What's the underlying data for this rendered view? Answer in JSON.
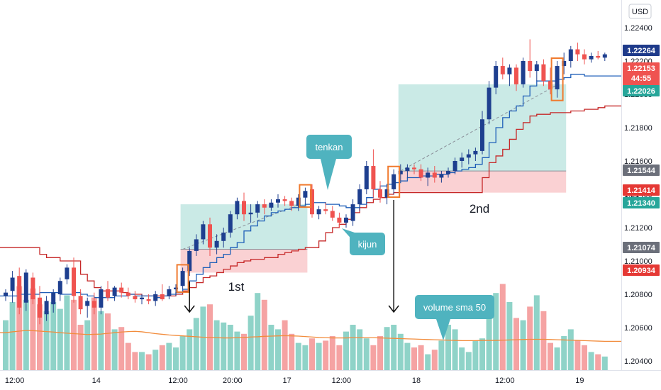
{
  "chart_data": {
    "type": "candlestick",
    "currency": "USD",
    "y_ticks": [
      "1.22400",
      "1.22200",
      "1.22000",
      "1.21800",
      "1.21600",
      "1.21400",
      "1.21200",
      "1.21000",
      "1.20800",
      "1.20600",
      "1.20400"
    ],
    "x_ticks": [
      "12:00",
      "14",
      "12:00",
      "20:00",
      "17",
      "12:00",
      "18",
      "12:00",
      "19"
    ],
    "price_labels": [
      {
        "text": "1.22264",
        "color": "#1e3a8a"
      },
      {
        "text": "1.22153",
        "color": "#ef5350"
      },
      {
        "text": "44:55",
        "color": "#ef5350"
      },
      {
        "text": "1.22026",
        "color": "#26a69a"
      },
      {
        "text": "1.21544",
        "color": "#6b6f7a"
      },
      {
        "text": "1.21414",
        "color": "#e53935"
      },
      {
        "text": "1.21340",
        "color": "#26a69a"
      },
      {
        "text": "1.21074",
        "color": "#6b6f7a"
      },
      {
        "text": "1.20934",
        "color": "#e53935"
      }
    ],
    "candles": [
      [
        1.2079,
        1.2083,
        1.2076,
        1.2081
      ],
      [
        1.2082,
        1.2094,
        1.2075,
        1.209
      ],
      [
        1.2091,
        1.2096,
        1.2068,
        1.2072
      ],
      [
        1.2075,
        1.2095,
        1.207,
        1.2093
      ],
      [
        1.209,
        1.2093,
        1.2074,
        1.2077
      ],
      [
        1.2078,
        1.2085,
        1.2062,
        1.2066
      ],
      [
        1.2068,
        1.2079,
        1.2064,
        1.2076
      ],
      [
        1.2074,
        1.2083,
        1.2069,
        1.2081
      ],
      [
        1.208,
        1.209,
        1.2076,
        1.2088
      ],
      [
        1.2089,
        1.2098,
        1.2086,
        1.2096
      ],
      [
        1.2096,
        1.2102,
        1.2075,
        1.2079
      ],
      [
        1.2079,
        1.2083,
        1.2068,
        1.2071
      ],
      [
        1.2073,
        1.2078,
        1.2066,
        1.2076
      ],
      [
        1.2076,
        1.2081,
        1.2068,
        1.2072
      ],
      [
        1.2072,
        1.2085,
        1.2068,
        1.2083
      ],
      [
        1.2083,
        1.2088,
        1.2076,
        1.2078
      ],
      [
        1.2079,
        1.2085,
        1.2076,
        1.2084
      ],
      [
        1.2084,
        1.2087,
        1.2078,
        1.2081
      ],
      [
        1.2081,
        1.2084,
        1.2077,
        1.2079
      ],
      [
        1.2079,
        1.2082,
        1.2075,
        1.2077
      ],
      [
        1.2077,
        1.208,
        1.2074,
        1.2078
      ],
      [
        1.2077,
        1.208,
        1.2074,
        1.2076
      ],
      [
        1.2076,
        1.2082,
        1.2073,
        1.208
      ],
      [
        1.208,
        1.2086,
        1.2076,
        1.2077
      ],
      [
        1.2079,
        1.2085,
        1.2077,
        1.2083
      ],
      [
        1.2083,
        1.2086,
        1.2079,
        1.2084
      ],
      [
        1.2085,
        1.2096,
        1.2083,
        1.2094
      ],
      [
        1.2094,
        1.2108,
        1.2091,
        1.2106
      ],
      [
        1.2106,
        1.2116,
        1.2103,
        1.2113
      ],
      [
        1.2113,
        1.2124,
        1.211,
        1.2122
      ],
      [
        1.2122,
        1.2126,
        1.2103,
        1.2108
      ],
      [
        1.2108,
        1.2116,
        1.2104,
        1.2112
      ],
      [
        1.2112,
        1.212,
        1.2108,
        1.2117
      ],
      [
        1.2117,
        1.213,
        1.2114,
        1.2128
      ],
      [
        1.2128,
        1.2138,
        1.2125,
        1.2136
      ],
      [
        1.2136,
        1.2141,
        1.2124,
        1.2128
      ],
      [
        1.2128,
        1.2134,
        1.2123,
        1.2129
      ],
      [
        1.2129,
        1.2136,
        1.2126,
        1.2134
      ],
      [
        1.2134,
        1.2137,
        1.2128,
        1.2132
      ],
      [
        1.2132,
        1.2137,
        1.213,
        1.2135
      ],
      [
        1.2135,
        1.214,
        1.2132,
        1.2137
      ],
      [
        1.2137,
        1.2139,
        1.2133,
        1.2136
      ],
      [
        1.2136,
        1.2138,
        1.213,
        1.2133
      ],
      [
        1.2133,
        1.214,
        1.213,
        1.2138
      ],
      [
        1.2138,
        1.2144,
        1.2134,
        1.2142
      ],
      [
        1.2143,
        1.2146,
        1.2126,
        1.2128
      ],
      [
        1.2128,
        1.2133,
        1.2125,
        1.2131
      ],
      [
        1.2131,
        1.2135,
        1.2128,
        1.213
      ],
      [
        1.213,
        1.2133,
        1.2124,
        1.2126
      ],
      [
        1.2126,
        1.2129,
        1.212,
        1.2123
      ],
      [
        1.2123,
        1.2128,
        1.212,
        1.2126
      ],
      [
        1.2124,
        1.2137,
        1.2121,
        1.2134
      ],
      [
        1.2134,
        1.2146,
        1.213,
        1.2143
      ],
      [
        1.2143,
        1.216,
        1.214,
        1.2157
      ],
      [
        1.2157,
        1.2167,
        1.2138,
        1.2143
      ],
      [
        1.2143,
        1.2148,
        1.2135,
        1.2138
      ],
      [
        1.2138,
        1.2146,
        1.2134,
        1.2143
      ],
      [
        1.2143,
        1.2155,
        1.214,
        1.2152
      ],
      [
        1.2152,
        1.2158,
        1.2148,
        1.2154
      ],
      [
        1.2154,
        1.2158,
        1.215,
        1.2156
      ],
      [
        1.2156,
        1.2158,
        1.2152,
        1.2155
      ],
      [
        1.2155,
        1.2158,
        1.2148,
        1.215
      ],
      [
        1.215,
        1.2156,
        1.2145,
        1.2153
      ],
      [
        1.2153,
        1.2157,
        1.2147,
        1.215
      ],
      [
        1.215,
        1.2154,
        1.2147,
        1.2152
      ],
      [
        1.2152,
        1.2156,
        1.215,
        1.2154
      ],
      [
        1.2154,
        1.2162,
        1.2152,
        1.216
      ],
      [
        1.216,
        1.2165,
        1.2156,
        1.2162
      ],
      [
        1.2162,
        1.2167,
        1.2158,
        1.2164
      ],
      [
        1.2164,
        1.2168,
        1.216,
        1.2166
      ],
      [
        1.2166,
        1.219,
        1.2164,
        1.2185
      ],
      [
        1.2185,
        1.2208,
        1.2182,
        1.2204
      ],
      [
        1.2204,
        1.222,
        1.22,
        1.2217
      ],
      [
        1.2217,
        1.2222,
        1.2209,
        1.2212
      ],
      [
        1.2212,
        1.2218,
        1.2205,
        1.2216
      ],
      [
        1.2216,
        1.2218,
        1.2202,
        1.2206
      ],
      [
        1.2206,
        1.2222,
        1.2204,
        1.222
      ],
      [
        1.222,
        1.2233,
        1.221,
        1.2214
      ],
      [
        1.2214,
        1.222,
        1.2208,
        1.2218
      ],
      [
        1.2218,
        1.2221,
        1.2205,
        1.2208
      ],
      [
        1.2208,
        1.2216,
        1.22,
        1.2203
      ],
      [
        1.2203,
        1.222,
        1.2198,
        1.2217
      ],
      [
        1.2217,
        1.2225,
        1.2212,
        1.222
      ],
      [
        1.222,
        1.2229,
        1.2216,
        1.2227
      ],
      [
        1.2227,
        1.2231,
        1.222,
        1.2224
      ],
      [
        1.2224,
        1.2227,
        1.2218,
        1.2221
      ],
      [
        1.2221,
        1.2225,
        1.2219,
        1.2223
      ],
      [
        1.2223,
        1.2226,
        1.2221,
        1.2222
      ],
      [
        1.2222,
        1.2225,
        1.222,
        1.2224
      ]
    ],
    "volume": [
      22,
      30,
      37,
      31,
      36,
      29,
      26,
      30,
      27,
      33,
      31,
      20,
      22,
      32,
      26,
      25,
      18,
      19,
      12,
      8,
      8,
      7,
      9,
      11,
      12,
      10,
      15,
      18,
      23,
      28,
      29,
      22,
      21,
      20,
      17,
      16,
      24,
      34,
      31,
      20,
      18,
      22,
      16,
      12,
      11,
      14,
      12,
      13,
      15,
      11,
      17,
      20,
      18,
      14,
      11,
      15,
      19,
      20,
      16,
      12,
      10,
      11,
      7,
      9,
      13,
      20,
      18,
      10,
      8,
      13,
      14,
      27,
      34,
      38,
      30,
      23,
      22,
      28,
      33,
      26,
      12,
      10,
      15,
      18,
      13,
      11,
      8,
      7,
      6
    ],
    "volume_sma_50": [
      16.5,
      16.9,
      17.2,
      17.5,
      17.4,
      17.2,
      17.0,
      16.8,
      16.5,
      16.3,
      16.1,
      15.9,
      15.7,
      15.8,
      15.9,
      16.2,
      16.5,
      16.8,
      17.0,
      17.1,
      16.9,
      16.5,
      16.1,
      15.8,
      15.5,
      15.3,
      15.1,
      14.9,
      14.7,
      14.5,
      14.4,
      14.3,
      14.2,
      14.2,
      14.3,
      14.4,
      14.6,
      14.7,
      14.9,
      15.0,
      15.1,
      15.2,
      15.1,
      15.0,
      14.8,
      14.6,
      14.4,
      14.3,
      14.2,
      14.2,
      14.2,
      14.3,
      14.3,
      14.3,
      14.3,
      14.2,
      14.1,
      14.0,
      13.9,
      13.8,
      13.7,
      13.6,
      13.5,
      13.4,
      13.3,
      13.2,
      13.1,
      13.0,
      13.0,
      13.0,
      13.1,
      13.1,
      13.1,
      13.2,
      13.3,
      13.4,
      13.5,
      13.6,
      13.6,
      13.6,
      13.5,
      13.4,
      13.3,
      13.2,
      13.1,
      13.0,
      12.9,
      12.8,
      12.7
    ],
    "tenkan": [
      1.2079,
      1.2079,
      1.208,
      1.208,
      1.208,
      1.2081,
      1.2081,
      1.2081,
      1.208,
      1.208,
      1.2081,
      1.208,
      1.2079,
      1.2078,
      1.2078,
      1.2078,
      1.2079,
      1.2079,
      1.208,
      1.2079,
      1.2079,
      1.2079,
      1.2078,
      1.2079,
      1.208,
      1.2081,
      1.2083,
      1.2088,
      1.2092,
      1.2096,
      1.2099,
      1.2102,
      1.2104,
      1.2108,
      1.2111,
      1.2118,
      1.2121,
      1.2124,
      1.2127,
      1.2129,
      1.213,
      1.2131,
      1.2132,
      1.2133,
      1.2134,
      1.2135,
      1.2135,
      1.2134,
      1.2134,
      1.2133,
      1.2132,
      1.2132,
      1.2134,
      1.2138,
      1.2143,
      1.2145,
      1.2146,
      1.2147,
      1.2148,
      1.215,
      1.215,
      1.2151,
      1.2151,
      1.2152,
      1.2152,
      1.2153,
      1.2154,
      1.2155,
      1.2156,
      1.2158,
      1.2162,
      1.2171,
      1.218,
      1.2186,
      1.219,
      1.2193,
      1.2199,
      1.2205,
      1.2208,
      1.2208,
      1.2208,
      1.2209,
      1.221,
      1.2212,
      1.2212,
      1.2211,
      1.2211,
      1.2211,
      1.2211
    ],
    "kijun": [
      1.2108,
      1.2108,
      1.2108,
      1.2108,
      1.2108,
      1.2104,
      1.2102,
      1.2102,
      1.21,
      1.21,
      1.21,
      1.2092,
      1.2088,
      1.2084,
      1.2082,
      1.2082,
      1.2082,
      1.2081,
      1.208,
      1.208,
      1.2079,
      1.2079,
      1.2079,
      1.2079,
      1.2079,
      1.208,
      1.2082,
      1.2084,
      1.2087,
      1.209,
      1.2091,
      1.2093,
      1.2095,
      1.2097,
      1.2099,
      1.21,
      1.2101,
      1.2101,
      1.2102,
      1.2102,
      1.2104,
      1.2105,
      1.2106,
      1.2107,
      1.2108,
      1.2108,
      1.2112,
      1.2117,
      1.212,
      1.2122,
      1.2125,
      1.2129,
      1.2132,
      1.2135,
      1.2137,
      1.2138,
      1.214,
      1.2141,
      1.2141,
      1.2141,
      1.2141,
      1.2141,
      1.2141,
      1.2141,
      1.2141,
      1.2141,
      1.2141,
      1.2141,
      1.2141,
      1.2141,
      1.215,
      1.2159,
      1.2163,
      1.2167,
      1.2173,
      1.2179,
      1.2183,
      1.2187,
      1.2188,
      1.2188,
      1.2189,
      1.2189,
      1.2189,
      1.219,
      1.219,
      1.2191,
      1.2191,
      1.2192,
      1.2193
    ],
    "positions": [
      {
        "name": "1st",
        "start": 26,
        "end": 44,
        "entry": 1.2107,
        "target": 1.2134,
        "stop": 1.2093
      },
      {
        "name": "2nd",
        "start": 58,
        "end": 82,
        "entry": 1.2154,
        "target": 1.2206,
        "stop": 1.2141
      }
    ],
    "highlight_candles": [
      26,
      44,
      57,
      81
    ],
    "signal_arrows": [
      27,
      57
    ],
    "annotations": [
      {
        "text": "tenkan"
      },
      {
        "text": "kijun"
      },
      {
        "text": "volume sma 50"
      },
      {
        "text": "1st"
      },
      {
        "text": "2nd"
      }
    ],
    "colors": {
      "up": "#1e3f8f",
      "down": "#ef5350",
      "vol_up": "#8fd3c8",
      "vol_down": "#f5a3a3",
      "tenkan": "#1f5fb8",
      "kijun": "#c62828",
      "volume_sma": "#f28c3c",
      "highlight": "#f07a2e",
      "callout": "#4fb3bf",
      "target_zone": "#9fd8d2",
      "stop_zone": "#f9c6c8"
    }
  }
}
